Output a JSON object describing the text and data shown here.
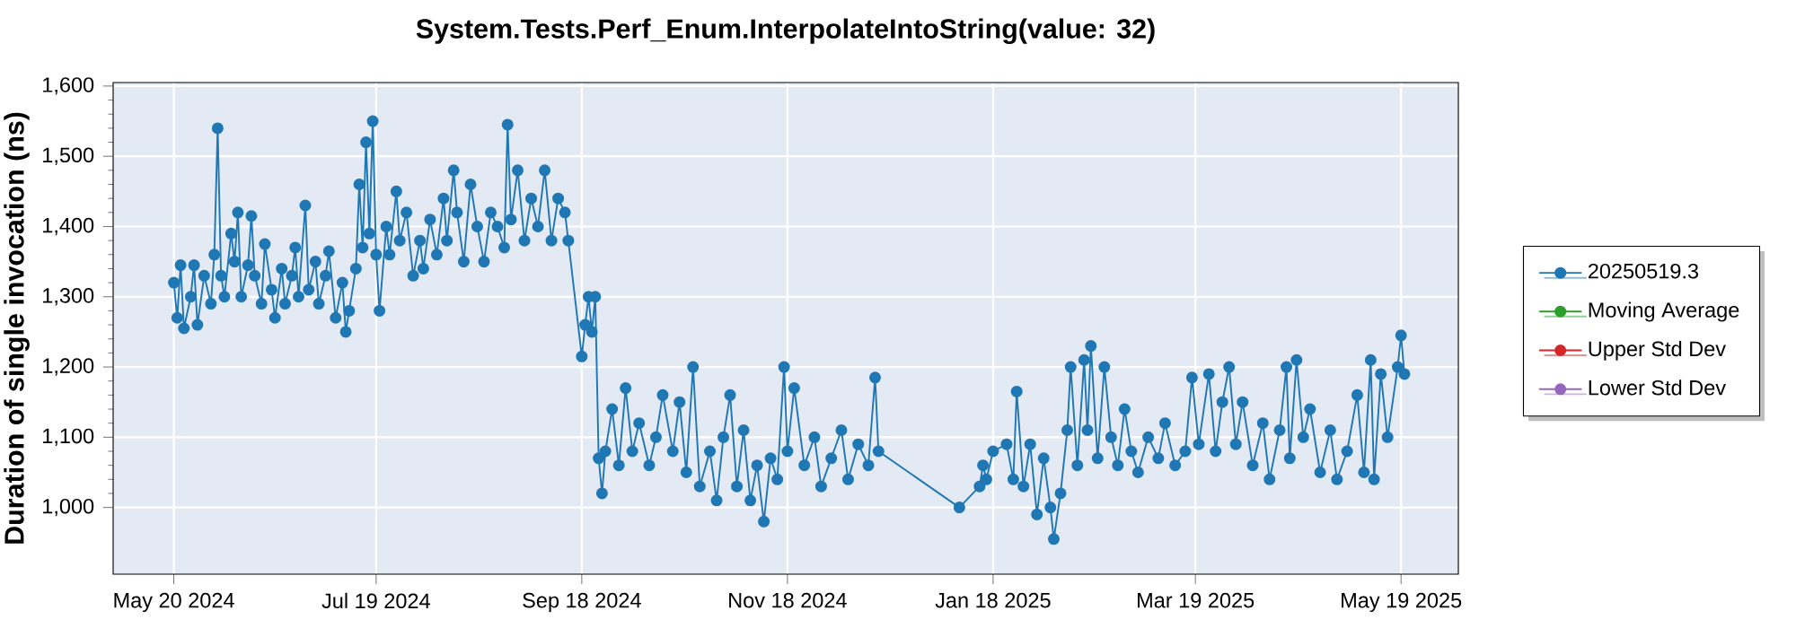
{
  "chart_data": {
    "type": "line",
    "title": "System.Tests.Perf_Enum.InterpolateIntoString(value: 32)",
    "ylabel": "Duration of single invocation (ns)",
    "x": [
      "2024-05-20",
      "2024-05-21",
      "2024-05-22",
      "2024-05-23",
      "2024-05-25",
      "2024-05-26",
      "2024-05-27",
      "2024-05-29",
      "2024-05-31",
      "2024-06-01",
      "2024-06-02",
      "2024-06-03",
      "2024-06-04",
      "2024-06-06",
      "2024-06-07",
      "2024-06-08",
      "2024-06-09",
      "2024-06-11",
      "2024-06-12",
      "2024-06-13",
      "2024-06-15",
      "2024-06-16",
      "2024-06-18",
      "2024-06-19",
      "2024-06-21",
      "2024-06-22",
      "2024-06-24",
      "2024-06-25",
      "2024-06-26",
      "2024-06-28",
      "2024-06-29",
      "2024-07-01",
      "2024-07-02",
      "2024-07-04",
      "2024-07-05",
      "2024-07-07",
      "2024-07-09",
      "2024-07-10",
      "2024-07-11",
      "2024-07-13",
      "2024-07-14",
      "2024-07-15",
      "2024-07-16",
      "2024-07-17",
      "2024-07-18",
      "2024-07-19",
      "2024-07-20",
      "2024-07-22",
      "2024-07-23",
      "2024-07-25",
      "2024-07-26",
      "2024-07-28",
      "2024-07-30",
      "2024-08-01",
      "2024-08-02",
      "2024-08-04",
      "2024-08-06",
      "2024-08-08",
      "2024-08-09",
      "2024-08-11",
      "2024-08-12",
      "2024-08-14",
      "2024-08-16",
      "2024-08-18",
      "2024-08-20",
      "2024-08-22",
      "2024-08-24",
      "2024-08-26",
      "2024-08-27",
      "2024-08-28",
      "2024-08-30",
      "2024-09-01",
      "2024-09-03",
      "2024-09-05",
      "2024-09-07",
      "2024-09-09",
      "2024-09-11",
      "2024-09-13",
      "2024-09-14",
      "2024-09-18",
      "2024-09-19",
      "2024-09-20",
      "2024-09-21",
      "2024-09-22",
      "2024-09-23",
      "2024-09-24",
      "2024-09-25",
      "2024-09-27",
      "2024-09-29",
      "2024-10-01",
      "2024-10-03",
      "2024-10-05",
      "2024-10-08",
      "2024-10-10",
      "2024-10-12",
      "2024-10-15",
      "2024-10-17",
      "2024-10-19",
      "2024-10-21",
      "2024-10-23",
      "2024-10-26",
      "2024-10-28",
      "2024-10-30",
      "2024-11-01",
      "2024-11-03",
      "2024-11-05",
      "2024-11-07",
      "2024-11-09",
      "2024-11-11",
      "2024-11-13",
      "2024-11-15",
      "2024-11-17",
      "2024-11-18",
      "2024-11-20",
      "2024-11-23",
      "2024-11-26",
      "2024-11-28",
      "2024-12-01",
      "2024-12-04",
      "2024-12-06",
      "2024-12-09",
      "2024-12-12",
      "2024-12-14",
      "2024-12-15",
      "2025-01-08",
      "2025-01-14",
      "2025-01-15",
      "2025-01-16",
      "2025-01-18",
      "2025-01-22",
      "2025-01-24",
      "2025-01-25",
      "2025-01-27",
      "2025-01-29",
      "2025-01-31",
      "2025-02-02",
      "2025-02-04",
      "2025-02-05",
      "2025-02-07",
      "2025-02-09",
      "2025-02-10",
      "2025-02-12",
      "2025-02-14",
      "2025-02-15",
      "2025-02-16",
      "2025-02-18",
      "2025-02-20",
      "2025-02-22",
      "2025-02-24",
      "2025-02-26",
      "2025-02-28",
      "2025-03-02",
      "2025-03-05",
      "2025-03-08",
      "2025-03-10",
      "2025-03-13",
      "2025-03-16",
      "2025-03-18",
      "2025-03-20",
      "2025-03-23",
      "2025-03-25",
      "2025-03-27",
      "2025-03-29",
      "2025-03-31",
      "2025-04-02",
      "2025-04-05",
      "2025-04-08",
      "2025-04-10",
      "2025-04-13",
      "2025-04-15",
      "2025-04-16",
      "2025-04-18",
      "2025-04-20",
      "2025-04-22",
      "2025-04-25",
      "2025-04-28",
      "2025-04-30",
      "2025-05-03",
      "2025-05-06",
      "2025-05-08",
      "2025-05-10",
      "2025-05-11",
      "2025-05-13",
      "2025-05-15",
      "2025-05-18",
      "2025-05-19",
      "2025-05-20"
    ],
    "series": [
      {
        "name": "20250519.3",
        "color": "#1f77b4",
        "values": [
          1320,
          1270,
          1345,
          1255,
          1300,
          1345,
          1260,
          1330,
          1290,
          1360,
          1540,
          1330,
          1300,
          1390,
          1350,
          1420,
          1300,
          1345,
          1415,
          1330,
          1290,
          1375,
          1310,
          1270,
          1340,
          1290,
          1330,
          1370,
          1300,
          1430,
          1310,
          1350,
          1290,
          1330,
          1365,
          1270,
          1320,
          1250,
          1280,
          1340,
          1460,
          1370,
          1520,
          1390,
          1550,
          1360,
          1280,
          1400,
          1360,
          1450,
          1380,
          1420,
          1330,
          1380,
          1340,
          1410,
          1360,
          1440,
          1380,
          1480,
          1420,
          1350,
          1460,
          1400,
          1350,
          1420,
          1400,
          1370,
          1545,
          1410,
          1480,
          1380,
          1440,
          1400,
          1480,
          1380,
          1440,
          1420,
          1380,
          1215,
          1260,
          1300,
          1250,
          1300,
          1070,
          1020,
          1080,
          1140,
          1060,
          1170,
          1080,
          1120,
          1060,
          1100,
          1160,
          1080,
          1150,
          1050,
          1200,
          1030,
          1080,
          1010,
          1100,
          1160,
          1030,
          1110,
          1010,
          1060,
          980,
          1070,
          1040,
          1200,
          1080,
          1170,
          1060,
          1100,
          1030,
          1070,
          1110,
          1040,
          1090,
          1060,
          1185,
          1080,
          1000,
          1030,
          1060,
          1040,
          1080,
          1090,
          1040,
          1165,
          1030,
          1090,
          990,
          1070,
          1000,
          955,
          1020,
          1110,
          1200,
          1060,
          1210,
          1110,
          1230,
          1070,
          1200,
          1100,
          1060,
          1140,
          1080,
          1050,
          1100,
          1070,
          1120,
          1060,
          1080,
          1185,
          1090,
          1190,
          1080,
          1150,
          1200,
          1090,
          1150,
          1060,
          1120,
          1040,
          1110,
          1200,
          1070,
          1210,
          1100,
          1140,
          1050,
          1110,
          1040,
          1080,
          1160,
          1050,
          1210,
          1040,
          1190,
          1100,
          1200,
          1245,
          1190
        ]
      },
      {
        "name": "Moving Average",
        "color": "#2ca02c",
        "values": [
          null,
          null,
          null,
          null,
          null,
          null,
          null,
          null,
          null,
          null,
          null,
          null,
          null,
          null,
          null,
          null,
          null,
          null,
          null,
          null,
          null,
          null,
          null,
          null,
          null,
          null,
          null,
          null,
          null,
          null,
          null,
          null,
          null,
          null,
          null,
          null,
          null,
          null,
          null,
          null,
          null,
          null,
          null,
          null,
          null,
          null,
          null,
          null,
          null,
          null,
          null,
          null,
          null,
          null,
          null,
          null,
          null,
          null,
          null,
          null,
          null,
          null,
          null,
          null,
          null,
          null,
          null,
          null,
          null,
          null,
          null,
          null,
          null,
          null,
          null,
          null,
          null,
          null,
          null,
          null,
          null,
          null,
          null,
          null,
          null,
          null,
          null,
          null,
          null,
          null,
          null,
          null,
          null,
          null,
          null,
          null,
          null,
          null,
          null,
          null,
          null,
          null,
          null,
          null,
          null,
          null,
          null,
          null,
          null,
          null,
          null,
          null,
          null,
          null,
          null,
          null,
          null,
          null,
          null,
          null,
          null,
          null,
          null,
          null,
          null,
          null,
          null,
          null,
          null,
          null,
          null,
          null,
          null,
          null,
          null,
          null,
          null,
          null,
          null,
          null,
          null,
          null,
          null,
          null,
          null,
          null,
          null,
          null,
          null,
          null,
          null,
          null,
          null,
          null,
          null,
          null,
          null,
          null,
          null,
          null,
          null,
          null,
          null,
          null,
          null,
          null,
          null,
          null,
          null,
          null,
          null,
          null,
          null,
          null,
          null,
          null,
          null,
          null,
          null,
          null,
          null,
          null,
          null,
          null,
          null,
          null,
          null
        ]
      },
      {
        "name": "Upper Std Dev",
        "color": "#d62728",
        "values": [
          null,
          null,
          null,
          null,
          null,
          null,
          null,
          null,
          null,
          null,
          null,
          null,
          null,
          null,
          null,
          null,
          null,
          null,
          null,
          null,
          null,
          null,
          null,
          null,
          null,
          null,
          null,
          null,
          null,
          null,
          null,
          null,
          null,
          null,
          null,
          null,
          null,
          null,
          null,
          null,
          null,
          null,
          null,
          null,
          null,
          null,
          null,
          null,
          null,
          null,
          null,
          null,
          null,
          null,
          null,
          null,
          null,
          null,
          null,
          null,
          null,
          null,
          null,
          null,
          null,
          null,
          null,
          null,
          null,
          null,
          null,
          null,
          null,
          null,
          null,
          null,
          null,
          null,
          null,
          null,
          null,
          null,
          null,
          null,
          null,
          null,
          null,
          null,
          null,
          null,
          null,
          null,
          null,
          null,
          null,
          null,
          null,
          null,
          null,
          null,
          null,
          null,
          null,
          null,
          null,
          null,
          null,
          null,
          null,
          null,
          null,
          null,
          null,
          null,
          null,
          null,
          null,
          null,
          null,
          null,
          null,
          null,
          null,
          null,
          null,
          null,
          null,
          null,
          null,
          null,
          null,
          null,
          null,
          null,
          null,
          null,
          null,
          null,
          null,
          null,
          null,
          null,
          null,
          null,
          null,
          null,
          null,
          null,
          null,
          null,
          null,
          null,
          null,
          null,
          null,
          null,
          null,
          null,
          null,
          null,
          null,
          null,
          null,
          null,
          null,
          null,
          null,
          null,
          null,
          null,
          null,
          null,
          null,
          null,
          null,
          null,
          null,
          null,
          null,
          null,
          null,
          null,
          null,
          null,
          null,
          null,
          null
        ]
      },
      {
        "name": "Lower Std Dev",
        "color": "#9467bd",
        "values": [
          null,
          null,
          null,
          null,
          null,
          null,
          null,
          null,
          null,
          null,
          null,
          null,
          null,
          null,
          null,
          null,
          null,
          null,
          null,
          null,
          null,
          null,
          null,
          null,
          null,
          null,
          null,
          null,
          null,
          null,
          null,
          null,
          null,
          null,
          null,
          null,
          null,
          null,
          null,
          null,
          null,
          null,
          null,
          null,
          null,
          null,
          null,
          null,
          null,
          null,
          null,
          null,
          null,
          null,
          null,
          null,
          null,
          null,
          null,
          null,
          null,
          null,
          null,
          null,
          null,
          null,
          null,
          null,
          null,
          null,
          null,
          null,
          null,
          null,
          null,
          null,
          null,
          null,
          null,
          null,
          null,
          null,
          null,
          null,
          null,
          null,
          null,
          null,
          null,
          null,
          null,
          null,
          null,
          null,
          null,
          null,
          null,
          null,
          null,
          null,
          null,
          null,
          null,
          null,
          null,
          null,
          null,
          null,
          null,
          null,
          null,
          null,
          null,
          null,
          null,
          null,
          null,
          null,
          null,
          null,
          null,
          null,
          null,
          null,
          null,
          null,
          null,
          null,
          null,
          null,
          null,
          null,
          null,
          null,
          null,
          null,
          null,
          null,
          null,
          null,
          null,
          null,
          null,
          null,
          null,
          null,
          null,
          null,
          null,
          null,
          null,
          null,
          null,
          null,
          null,
          null,
          null,
          null,
          null,
          null,
          null,
          null,
          null,
          null,
          null,
          null,
          null,
          null,
          null,
          null,
          null,
          null,
          null,
          null,
          null,
          null,
          null,
          null,
          null,
          null,
          null,
          null,
          null,
          null,
          null,
          null,
          null
        ]
      }
    ],
    "xlim": [
      "2024-05-02",
      "2025-06-05"
    ],
    "xticks": [
      {
        "value": "2024-05-20",
        "label": "May 20 2024"
      },
      {
        "value": "2024-07-19",
        "label": "Jul 19 2024"
      },
      {
        "value": "2024-09-18",
        "label": "Sep 18 2024"
      },
      {
        "value": "2024-11-18",
        "label": "Nov 18 2024"
      },
      {
        "value": "2025-01-18",
        "label": "Jan 18 2025"
      },
      {
        "value": "2025-03-19",
        "label": "Mar 19 2025"
      },
      {
        "value": "2025-05-19",
        "label": "May 19 2025"
      }
    ],
    "ylim": [
      905,
      1605
    ],
    "yticks": [
      {
        "value": 1000,
        "label": "1,000"
      },
      {
        "value": 1100,
        "label": "1,100"
      },
      {
        "value": 1200,
        "label": "1,200"
      },
      {
        "value": 1300,
        "label": "1,300"
      },
      {
        "value": 1400,
        "label": "1,400"
      },
      {
        "value": 1500,
        "label": "1,500"
      },
      {
        "value": 1600,
        "label": "1,600"
      }
    ],
    "grid": true,
    "legend": "right",
    "marker": "circle",
    "line_style": "solid"
  }
}
